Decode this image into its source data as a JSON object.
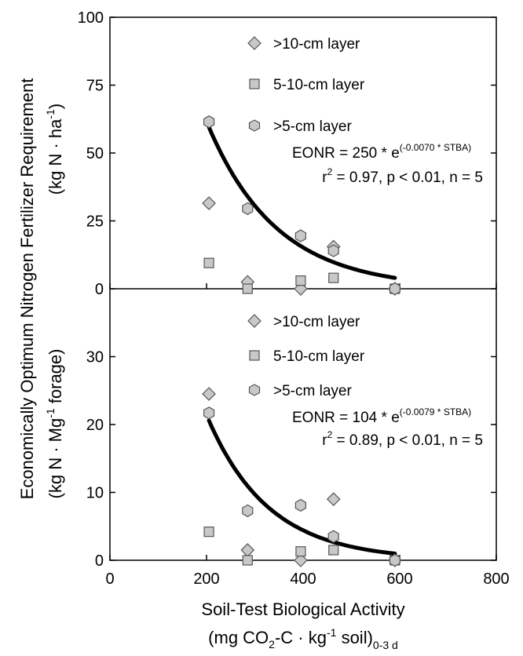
{
  "chart_data": [
    {
      "type": "scatter",
      "panel": "top",
      "xlim": [
        0,
        800
      ],
      "ylim": [
        0,
        100
      ],
      "yticks": [
        "0",
        "25",
        "50",
        "75",
        "100"
      ],
      "legend_placement": "top-center",
      "series": [
        {
          "name": ">10-cm layer",
          "marker": "diamond",
          "x": [
            205,
            285,
            395,
            463,
            590
          ],
          "y": [
            31.5,
            2.5,
            0,
            15.5,
            0
          ]
        },
        {
          "name": "5-10-cm layer",
          "marker": "square",
          "x": [
            205,
            285,
            395,
            463,
            590
          ],
          "y": [
            9.5,
            0,
            3,
            4,
            0
          ]
        },
        {
          "name": ">5-cm layer",
          "marker": "hexagon",
          "x": [
            205,
            285,
            395,
            463,
            590
          ],
          "y": [
            61.5,
            29.5,
            19.5,
            14,
            0
          ]
        }
      ],
      "fit": {
        "a": 250,
        "b": -0.007,
        "x_from": 205,
        "x_to": 590
      },
      "equation": {
        "main": "EONR = 250 * e",
        "exponent": "(-0.0070 * STBA)",
        "r_prefix": "r",
        "r_sup": "2",
        "r_rest": " = 0.97, p < 0.01, n = 5"
      }
    },
    {
      "type": "scatter",
      "panel": "bottom",
      "xlim": [
        0,
        800
      ],
      "ylim": [
        0,
        40
      ],
      "yticks": [
        "0",
        "10",
        "20",
        "30"
      ],
      "legend_placement": "top-center",
      "series": [
        {
          "name": ">10-cm layer",
          "marker": "diamond",
          "x": [
            205,
            285,
            395,
            463,
            590
          ],
          "y": [
            24.5,
            1.5,
            0,
            9,
            0
          ]
        },
        {
          "name": "5-10-cm layer",
          "marker": "square",
          "x": [
            205,
            285,
            395,
            463,
            590
          ],
          "y": [
            4.2,
            0,
            1.3,
            1.5,
            0
          ]
        },
        {
          "name": ">5-cm layer",
          "marker": "hexagon",
          "x": [
            205,
            285,
            395,
            463,
            590
          ],
          "y": [
            21.7,
            7.3,
            8.1,
            3.5,
            0
          ]
        }
      ],
      "fit": {
        "a": 104,
        "b": -0.0079,
        "x_from": 205,
        "x_to": 590
      },
      "equation": {
        "main": "EONR = 104 * e",
        "exponent": "(-0.0079 * STBA)",
        "r_prefix": "r",
        "r_sup": "2",
        "r_rest": " = 0.89, p < 0.01, n = 5"
      }
    }
  ],
  "x_axis": {
    "ticks": [
      "0",
      "200",
      "400",
      "600",
      "800"
    ],
    "title_line1": "Soil-Test Biological Activity",
    "title_line2": {
      "a": "(mg CO",
      "b": "2",
      "c": "-C",
      "d": " · ",
      "e": "kg",
      "f": "-1",
      "g": " soil)",
      "h": "0-3 d"
    }
  },
  "y_axis": {
    "title_main": "Economically Optimum Nitrogen Fertilizer Requirement",
    "top_unit": {
      "a": "(kg N",
      "b": " · ",
      "c": "ha",
      "d": "-1",
      "e": ")"
    },
    "bottom_unit": {
      "a": "(kg N",
      "b": " · ",
      "c": "Mg",
      "d": "-1",
      "e": " forage)"
    }
  },
  "colors": {
    "marker_fill": "#c8c8c8",
    "marker_stroke": "#555555",
    "fit_line": "#000000",
    "axis": "#000000"
  }
}
